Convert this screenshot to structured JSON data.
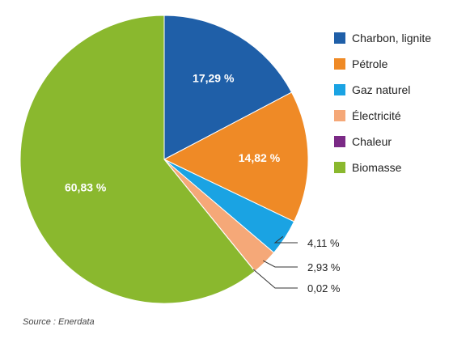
{
  "chart_data": {
    "type": "pie",
    "series": [
      {
        "name": "Charbon, lignite",
        "value": 17.29,
        "label": "17,29 %",
        "color": "#1f5fa8"
      },
      {
        "name": "Pétrole",
        "value": 14.82,
        "label": "14,82 %",
        "color": "#ef8a26"
      },
      {
        "name": "Gaz naturel",
        "value": 4.11,
        "label": "4,11 %",
        "color": "#1aa3e3"
      },
      {
        "name": "Électricité",
        "value": 2.93,
        "label": "2,93 %",
        "color": "#f5a878"
      },
      {
        "name": "Chaleur",
        "value": 0.02,
        "label": "0,02 %",
        "color": "#7b2a86"
      },
      {
        "name": "Biomasse",
        "value": 60.83,
        "label": "60,83 %",
        "color": "#8ab82e"
      }
    ],
    "legend": {
      "position": "right"
    }
  },
  "source": "Source : Enerdata"
}
